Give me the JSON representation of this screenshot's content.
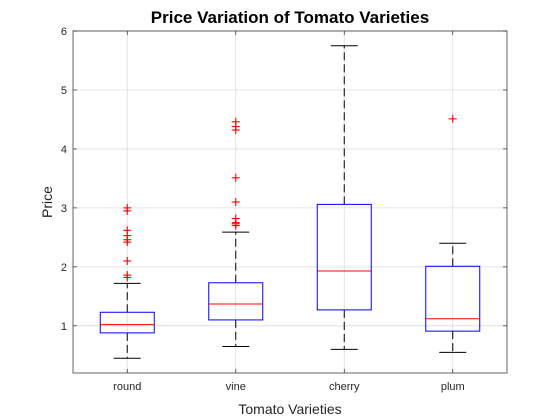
{
  "chart_data": {
    "type": "boxplot",
    "title": "Price Variation of Tomato Varieties",
    "xlabel": "Tomato Varieties",
    "ylabel": "Price",
    "ylim": [
      0.2,
      6
    ],
    "yticks": [
      1,
      2,
      3,
      4,
      5,
      6
    ],
    "grid": true,
    "colors": {
      "box": "#0000ff",
      "median": "#ff0000",
      "whisker": "#000000",
      "outlier": "#ff0000",
      "grid": "#dcdcdc",
      "axes": "#262626"
    },
    "categories": [
      "round",
      "vine",
      "cherry",
      "plum"
    ],
    "boxes": [
      {
        "category": "round",
        "whisker_low": 0.45,
        "q1": 0.88,
        "median": 1.02,
        "q3": 1.23,
        "whisker_high": 1.72,
        "outliers": [
          1.82,
          1.86,
          2.1,
          2.42,
          2.46,
          2.53,
          2.62,
          2.95,
          3.0
        ]
      },
      {
        "category": "vine",
        "whisker_low": 0.65,
        "q1": 1.1,
        "median": 1.37,
        "q3": 1.73,
        "whisker_high": 2.59,
        "outliers": [
          2.7,
          2.73,
          2.75,
          2.82,
          3.1,
          3.51,
          4.32,
          4.38,
          4.46
        ]
      },
      {
        "category": "cherry",
        "whisker_low": 0.6,
        "q1": 1.27,
        "median": 1.93,
        "q3": 3.06,
        "whisker_high": 5.75,
        "outliers": []
      },
      {
        "category": "plum",
        "whisker_low": 0.55,
        "q1": 0.91,
        "median": 1.12,
        "q3": 2.01,
        "whisker_high": 2.4,
        "outliers": [
          4.51
        ]
      }
    ]
  }
}
